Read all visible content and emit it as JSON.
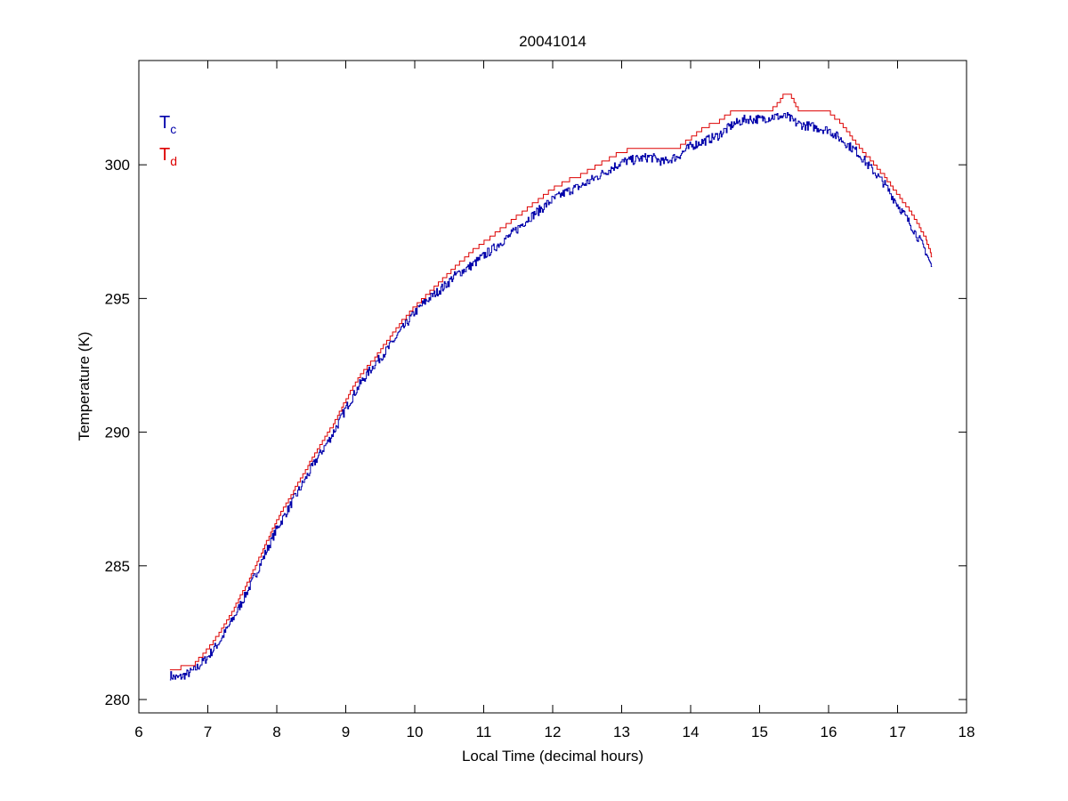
{
  "colors": {
    "tc": "#0000aa",
    "td": "#dd0000"
  },
  "chart_data": {
    "type": "line",
    "title": "20041014",
    "xlabel": "Local Time (decimal hours)",
    "ylabel": "Temperature (K)",
    "xlim": [
      6,
      18
    ],
    "ylim": [
      279.5,
      303.9
    ],
    "xticks": [
      6,
      7,
      8,
      9,
      10,
      11,
      12,
      13,
      14,
      15,
      16,
      17,
      18
    ],
    "yticks": [
      280,
      285,
      290,
      295,
      300
    ],
    "grid": false,
    "legend_position": "top-left",
    "legend": [
      {
        "base": "T",
        "sub": "c",
        "color": "#0000aa"
      },
      {
        "base": "T",
        "sub": "d",
        "color": "#dd0000"
      }
    ],
    "series": [
      {
        "id": "tc",
        "color": "#0000aa",
        "step": 0.0313,
        "x": [
          6.45,
          6.55,
          6.65,
          6.8,
          7.0,
          7.2,
          7.4,
          7.6,
          7.8,
          8.0,
          8.2,
          8.4,
          8.6,
          8.8,
          9.0,
          9.2,
          9.4,
          9.6,
          9.8,
          10.0,
          10.2,
          10.4,
          10.6,
          10.8,
          11.0,
          11.2,
          11.4,
          11.6,
          11.8,
          12.0,
          12.2,
          12.4,
          12.6,
          12.8,
          13.0,
          13.2,
          13.4,
          13.6,
          13.8,
          14.0,
          14.2,
          14.4,
          14.6,
          14.8,
          15.0,
          15.2,
          15.4,
          15.5,
          15.6,
          15.8,
          16.0,
          16.2,
          16.4,
          16.6,
          16.8,
          17.0,
          17.2,
          17.4,
          17.5
        ],
        "y": [
          280.9,
          280.8,
          280.9,
          281.1,
          281.6,
          282.3,
          283.2,
          284.2,
          285.3,
          286.4,
          287.3,
          288.2,
          289.1,
          289.9,
          290.9,
          291.8,
          292.5,
          293.1,
          293.8,
          294.5,
          295.0,
          295.4,
          295.9,
          296.2,
          296.6,
          297.0,
          297.4,
          297.9,
          298.3,
          298.7,
          299.0,
          299.2,
          299.5,
          299.8,
          300.1,
          300.2,
          300.3,
          300.1,
          300.3,
          300.7,
          300.9,
          301.1,
          301.5,
          301.7,
          301.7,
          301.8,
          301.8,
          301.6,
          301.5,
          301.4,
          301.3,
          300.9,
          300.5,
          299.9,
          299.3,
          298.5,
          297.7,
          296.8,
          296.1
        ],
        "noise": 0.35
      },
      {
        "id": "td",
        "color": "#dd0000",
        "step": 0.156,
        "x": [
          6.45,
          6.8,
          7.0,
          7.2,
          7.4,
          7.6,
          7.8,
          8.0,
          8.2,
          8.4,
          8.6,
          8.8,
          9.0,
          9.2,
          9.4,
          9.6,
          9.8,
          10.0,
          10.2,
          10.4,
          10.6,
          10.8,
          11.0,
          11.2,
          11.4,
          11.6,
          11.8,
          12.0,
          12.2,
          12.4,
          12.6,
          12.8,
          13.0,
          13.2,
          13.4,
          13.6,
          13.8,
          14.0,
          14.2,
          14.4,
          14.6,
          14.8,
          15.0,
          15.2,
          15.35,
          15.45,
          15.55,
          15.7,
          15.9,
          16.0,
          16.2,
          16.4,
          16.6,
          16.8,
          17.0,
          17.2,
          17.4,
          17.5
        ],
        "y": [
          281.1,
          281.3,
          281.9,
          282.6,
          283.5,
          284.5,
          285.6,
          286.7,
          287.6,
          288.5,
          289.4,
          290.2,
          291.2,
          292.1,
          292.7,
          293.4,
          294.1,
          294.7,
          295.2,
          295.7,
          296.2,
          296.7,
          297.1,
          297.5,
          297.9,
          298.3,
          298.7,
          299.1,
          299.4,
          299.6,
          299.9,
          300.2,
          300.5,
          300.6,
          300.6,
          300.6,
          300.6,
          301.0,
          301.4,
          301.6,
          302.0,
          302.0,
          302.0,
          302.1,
          302.6,
          302.6,
          302.1,
          302.0,
          302.0,
          302.0,
          301.5,
          300.8,
          300.2,
          299.6,
          298.9,
          298.2,
          297.3,
          296.5
        ],
        "noise": 0
      }
    ]
  }
}
